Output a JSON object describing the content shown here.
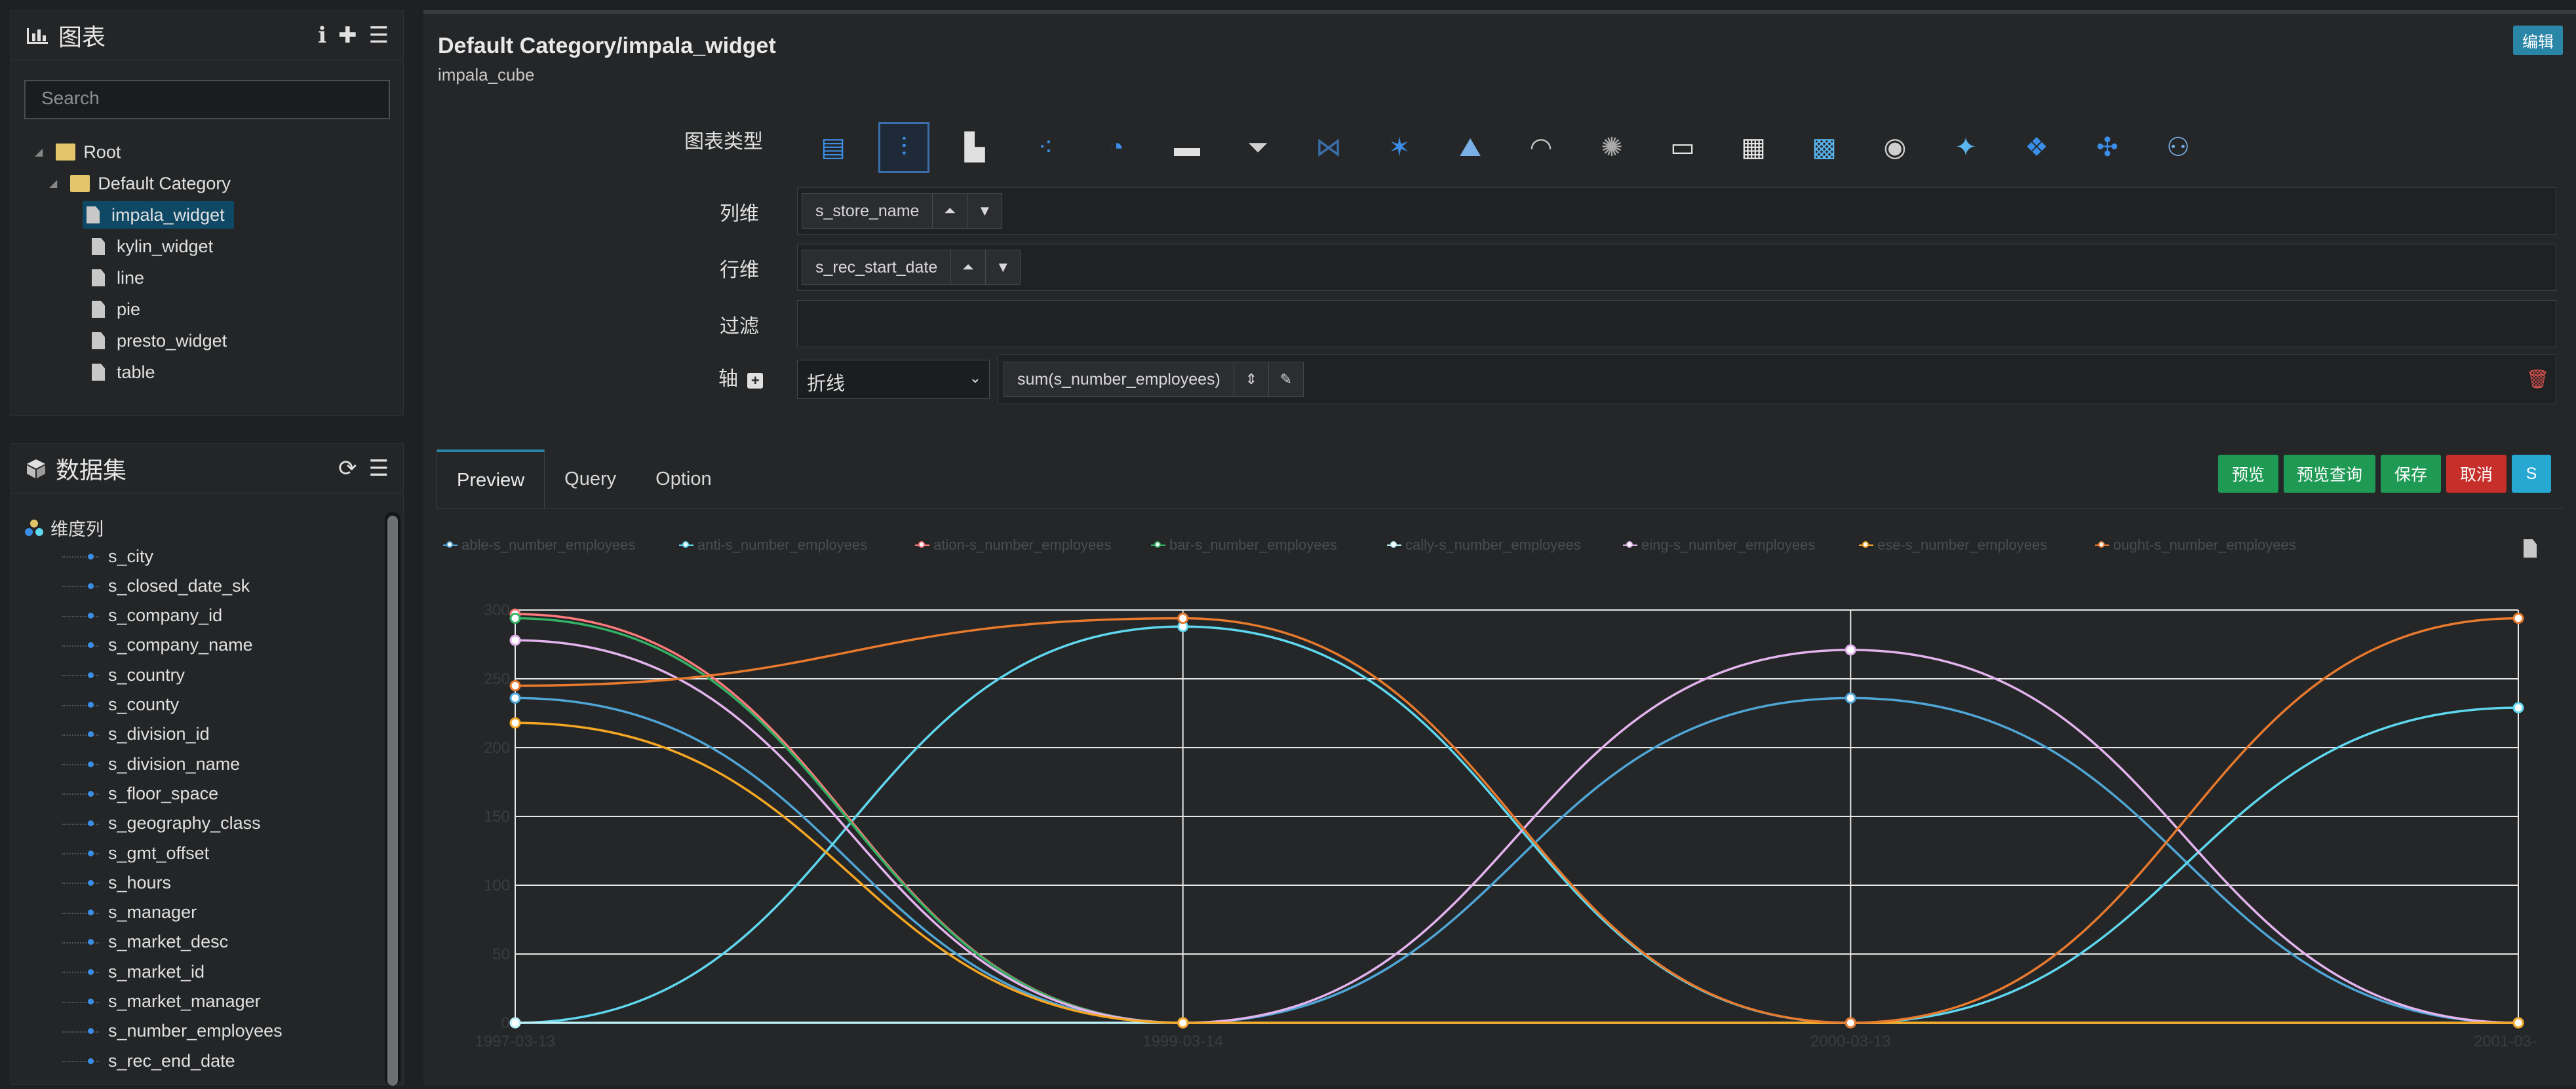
{
  "charts_panel": {
    "title": "图表",
    "search_placeholder": "Search",
    "tree": {
      "root": "Root",
      "folder": "Default Category",
      "items": [
        "impala_widget",
        "kylin_widget",
        "line",
        "pie",
        "presto_widget",
        "table"
      ],
      "selected": "impala_widget"
    }
  },
  "datasets_panel": {
    "title": "数据集",
    "group": "维度列",
    "columns": [
      "s_city",
      "s_closed_date_sk",
      "s_company_id",
      "s_company_name",
      "s_country",
      "s_county",
      "s_division_id",
      "s_division_name",
      "s_floor_space",
      "s_geography_class",
      "s_gmt_offset",
      "s_hours",
      "s_manager",
      "s_market_desc",
      "s_market_id",
      "s_market_manager",
      "s_number_employees",
      "s_rec_end_date"
    ]
  },
  "header": {
    "title": "Default Category/impala_widget",
    "subtitle": "impala_cube",
    "edit_label": "编辑"
  },
  "config": {
    "chart_type_label": "图表类型",
    "column_label": "列维",
    "column_value": "s_store_name",
    "row_label": "行维",
    "row_value": "s_rec_start_date",
    "filter_label": "过滤",
    "axis_label": "轴",
    "axis_type": "折线",
    "axis_value": "sum(s_number_employees)"
  },
  "chart_types": [
    "table",
    "line",
    "bar",
    "scatter",
    "pie",
    "kpi",
    "funnel",
    "sankey",
    "radar",
    "map",
    "gauge",
    "wordcloud",
    "heatmap",
    "calendar",
    "treemap",
    "worldmap",
    "areamap",
    "chinamap",
    "scattermap",
    "relation"
  ],
  "active_chart_type": "line",
  "tabs": [
    "Preview",
    "Query",
    "Option"
  ],
  "active_tab": "Preview",
  "buttons": {
    "preview": "预览",
    "preview_query": "预览查询",
    "save": "保存",
    "cancel": "取消",
    "s": "S"
  },
  "colors": {
    "preview": "#1e9a55",
    "preview_query": "#1e9a55",
    "save": "#1e9a55",
    "cancel": "#c62f2a",
    "s": "#27a8d2"
  },
  "chart_data": {
    "type": "line",
    "smooth": true,
    "x": [
      "1997-03-13",
      "1999-03-14",
      "2000-03-13",
      "2001-03-"
    ],
    "ylim": [
      0,
      300
    ],
    "yticks": [
      0,
      50,
      100,
      150,
      200,
      250,
      300
    ],
    "grid": true,
    "legend_position": "top",
    "series": [
      {
        "name": "able-s_number_employees",
        "color": "#4fa6d6",
        "values": [
          236,
          0,
          236,
          0
        ]
      },
      {
        "name": "anti-s_number_employees",
        "color": "#5fd8ef",
        "values": [
          0,
          288,
          0,
          229
        ]
      },
      {
        "name": "ation-s_number_employees",
        "color": "#ff7b7b",
        "values": [
          297,
          0,
          0,
          0
        ]
      },
      {
        "name": "bar-s_number_employees",
        "color": "#33b164",
        "values": [
          294,
          0,
          0,
          0
        ]
      },
      {
        "name": "cally-s_number_employees",
        "color": "#bdeff5",
        "values": [
          0,
          0,
          0,
          0
        ]
      },
      {
        "name": "eing-s_number_employees",
        "color": "#e3b4ee",
        "values": [
          278,
          0,
          271,
          0
        ]
      },
      {
        "name": "ese-s_number_employees",
        "color": "#f5a623",
        "values": [
          218,
          0,
          0,
          0
        ]
      },
      {
        "name": "ought-s_number_employees",
        "color": "#e87a2e",
        "values": [
          245,
          294,
          0,
          294
        ]
      }
    ]
  }
}
